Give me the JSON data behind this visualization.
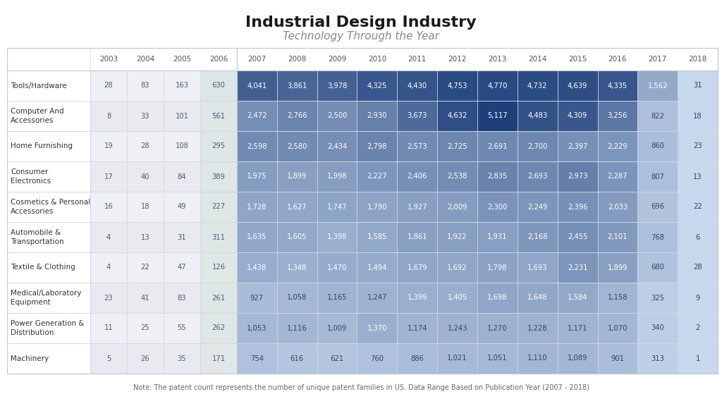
{
  "title": "Industrial Design Industry",
  "subtitle": "Technology Through the Year",
  "note": "Note: The patent count represents the number of unique patent families in US. Data Range Based on Publication Year (2007 - 2018)",
  "years": [
    "2003",
    "2004",
    "2005",
    "2006",
    "2007",
    "2008",
    "2009",
    "2010",
    "2011",
    "2012",
    "2013",
    "2014",
    "2015",
    "2016",
    "2017",
    "2018"
  ],
  "categories": [
    "Tools/Hardware",
    "Computer And\nAccessories",
    "Home Furnishing",
    "Consumer\nElectronics",
    "Cosmetics & Personal\nAccessories",
    "Automobile &\nTransportation",
    "Textile & Clothing",
    "Medical/Laboratory\nEquipment",
    "Power Generation &\nDistribution",
    "Machinery"
  ],
  "data": [
    [
      28,
      83,
      163,
      630,
      4041,
      3861,
      3978,
      4325,
      4430,
      4753,
      4770,
      4732,
      4639,
      4335,
      1562,
      31
    ],
    [
      8,
      33,
      101,
      561,
      2472,
      2766,
      2500,
      2930,
      3673,
      4632,
      5117,
      4483,
      4309,
      3256,
      822,
      18
    ],
    [
      19,
      28,
      108,
      295,
      2598,
      2580,
      2434,
      2798,
      2573,
      2725,
      2691,
      2700,
      2397,
      2229,
      860,
      23
    ],
    [
      17,
      40,
      84,
      389,
      1975,
      1899,
      1998,
      2227,
      2406,
      2538,
      2835,
      2693,
      2973,
      2287,
      807,
      13
    ],
    [
      16,
      18,
      49,
      227,
      1728,
      1627,
      1747,
      1790,
      1927,
      2009,
      2300,
      2249,
      2396,
      2033,
      696,
      22
    ],
    [
      4,
      13,
      31,
      311,
      1635,
      1605,
      1398,
      1585,
      1861,
      1922,
      1931,
      2168,
      2455,
      2101,
      768,
      6
    ],
    [
      4,
      22,
      47,
      126,
      1438,
      1348,
      1470,
      1494,
      1679,
      1692,
      1798,
      1693,
      2231,
      1899,
      680,
      28
    ],
    [
      23,
      41,
      83,
      261,
      927,
      1058,
      1165,
      1247,
      1399,
      1405,
      1698,
      1648,
      1584,
      1158,
      325,
      9
    ],
    [
      11,
      25,
      55,
      262,
      1053,
      1116,
      1009,
      1370,
      1174,
      1243,
      1270,
      1228,
      1171,
      1070,
      340,
      2
    ],
    [
      5,
      26,
      35,
      171,
      754,
      616,
      621,
      760,
      886,
      1021,
      1051,
      1110,
      1089,
      901,
      313,
      1
    ]
  ],
  "col_split": 4,
  "max_value": 5117,
  "bg_color": "#ffffff",
  "title_color": "#1a1a1a",
  "subtitle_color": "#888888",
  "header_text_color": "#555555",
  "row_label_color": "#333333",
  "note_color": "#666666",
  "early_bg_colors": [
    "#f0f2f5",
    "#f0f2f5",
    "#f0f2f5",
    "#dde4ef"
  ],
  "cell_border_color": "#d0d8e4",
  "row_bg_alt1": "#f7f8fa",
  "row_bg_alt2": "#eef0f5"
}
